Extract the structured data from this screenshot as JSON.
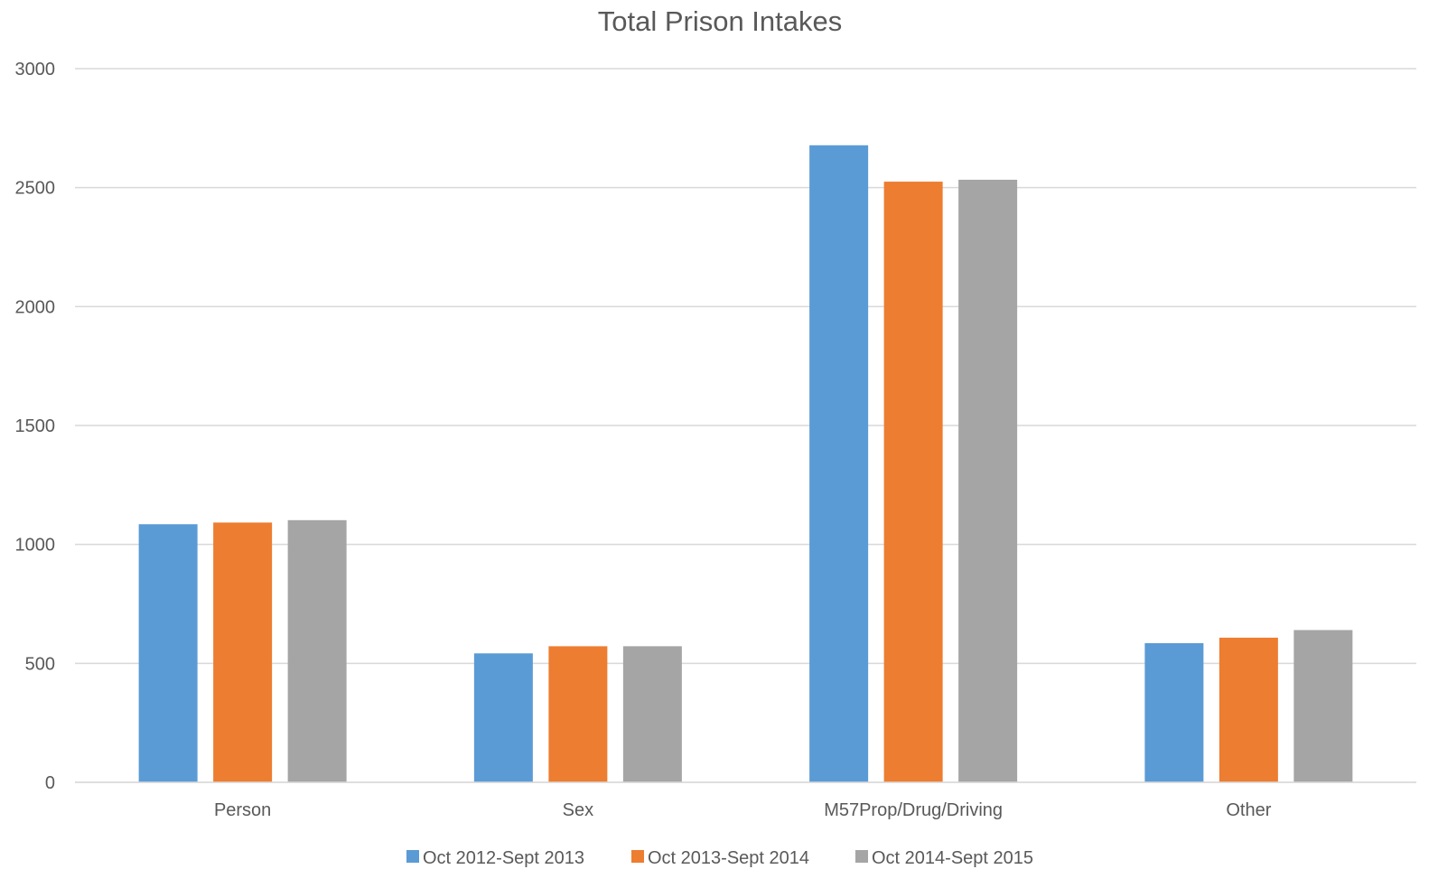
{
  "chart_data": {
    "type": "bar",
    "title": "Total Prison Intakes",
    "categories": [
      "Person",
      "Sex",
      "M57Prop/Drug/Driving",
      "Other"
    ],
    "series": [
      {
        "name": "Oct 2012-Sept 2013",
        "color": "#5B9BD5",
        "values": [
          1085,
          542,
          2678,
          585
        ]
      },
      {
        "name": "Oct 2013-Sept 2014",
        "color": "#ED7D31",
        "values": [
          1092,
          572,
          2525,
          608
        ]
      },
      {
        "name": "Oct 2014-Sept 2015",
        "color": "#A5A5A5",
        "values": [
          1102,
          572,
          2533,
          640
        ]
      }
    ],
    "ylim": [
      0,
      3000
    ],
    "yticks": [
      0,
      500,
      1000,
      1500,
      2000,
      2500,
      3000
    ],
    "grid": true,
    "legend_position": "bottom"
  }
}
